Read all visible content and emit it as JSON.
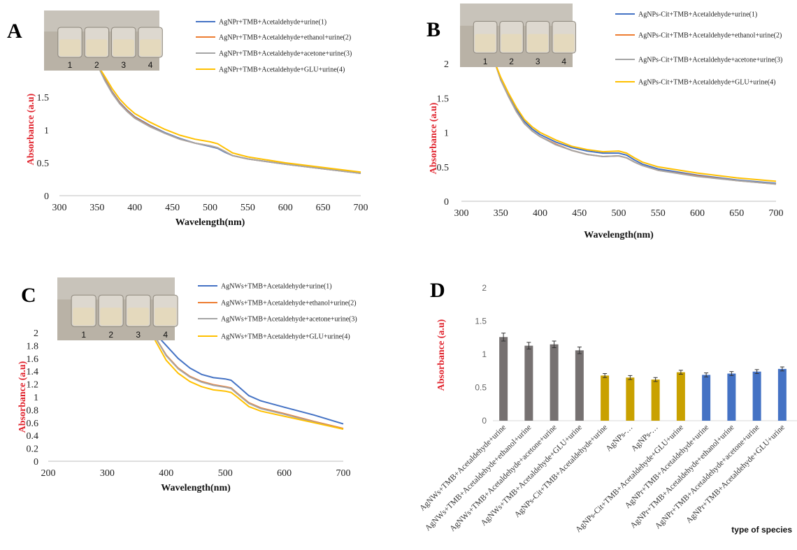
{
  "panels": {
    "A": {
      "label": "A",
      "vials": [
        "1",
        "2",
        "3",
        "4"
      ]
    },
    "B": {
      "label": "B",
      "vials": [
        "1",
        "2",
        "3",
        "4"
      ]
    },
    "C": {
      "label": "C",
      "vials": [
        "1",
        "2",
        "3",
        "4"
      ]
    },
    "D": {
      "label": "D"
    }
  },
  "colors": {
    "blue": "#4472c4",
    "orange": "#ed7d31",
    "gray": "#a5a5a5",
    "yellow": "#ffc000",
    "darkgray": "#767171",
    "gold": "#c9a100",
    "barblue": "#4472c4"
  },
  "chart_data": [
    {
      "id": "A",
      "type": "line",
      "xlabel": "Wavelength(nm)",
      "ylabel": "Absorbance (a.u)",
      "xlim": [
        300,
        700
      ],
      "ylim": [
        0,
        2
      ],
      "xticks": [
        "300",
        "350",
        "400",
        "450",
        "500",
        "550",
        "600",
        "650",
        "700"
      ],
      "yticks": [
        "0",
        "0.5",
        "1",
        "1.5"
      ],
      "x": [
        350,
        360,
        370,
        380,
        390,
        400,
        420,
        440,
        460,
        480,
        500,
        510,
        520,
        530,
        550,
        600,
        650,
        700
      ],
      "series": [
        {
          "name": "AgNPr+TMB+Acetaldehyde+urine(1)",
          "color": "#4472c4",
          "values": [
            2.0,
            1.78,
            1.58,
            1.42,
            1.3,
            1.2,
            1.07,
            0.96,
            0.87,
            0.8,
            0.75,
            0.72,
            0.66,
            0.61,
            0.56,
            0.48,
            0.41,
            0.34
          ]
        },
        {
          "name": "AgNPr+TMB+Acetaldehyde+ethanol+urine(2)",
          "color": "#ed7d31",
          "values": [
            2.0,
            1.77,
            1.57,
            1.41,
            1.29,
            1.19,
            1.06,
            0.95,
            0.86,
            0.8,
            0.76,
            0.73,
            0.67,
            0.61,
            0.56,
            0.48,
            0.41,
            0.34
          ]
        },
        {
          "name": "AgNPr+TMB+Acetaldehyde+acetone+urine(3)",
          "color": "#a5a5a5",
          "values": [
            2.0,
            1.76,
            1.56,
            1.4,
            1.28,
            1.18,
            1.05,
            0.95,
            0.86,
            0.8,
            0.76,
            0.73,
            0.67,
            0.61,
            0.56,
            0.48,
            0.41,
            0.34
          ]
        },
        {
          "name": "AgNPr+TMB+Acetaldehyde+GLU+urine(4)",
          "color": "#ffc000",
          "values": [
            2.0,
            1.82,
            1.63,
            1.47,
            1.35,
            1.25,
            1.12,
            1.01,
            0.92,
            0.86,
            0.82,
            0.79,
            0.72,
            0.65,
            0.59,
            0.5,
            0.43,
            0.36
          ]
        }
      ]
    },
    {
      "id": "B",
      "type": "line",
      "xlabel": "Wavelength(nm)",
      "ylabel": "Absorbance (a.u)",
      "xlim": [
        300,
        700
      ],
      "ylim": [
        0,
        2
      ],
      "xticks": [
        "300",
        "350",
        "400",
        "450",
        "500",
        "550",
        "600",
        "650",
        "700"
      ],
      "yticks": [
        "0",
        "0.5",
        "1",
        "1.5",
        "2"
      ],
      "x": [
        343,
        350,
        360,
        370,
        380,
        390,
        400,
        420,
        440,
        460,
        480,
        500,
        510,
        520,
        530,
        550,
        600,
        650,
        700
      ],
      "series": [
        {
          "name": "AgNPs-Cit+TMB+Acetaldehyde+urine(1)",
          "color": "#4472c4",
          "values": [
            2.0,
            1.78,
            1.55,
            1.33,
            1.16,
            1.05,
            0.97,
            0.86,
            0.78,
            0.73,
            0.7,
            0.7,
            0.67,
            0.6,
            0.54,
            0.47,
            0.38,
            0.31,
            0.26
          ]
        },
        {
          "name": "AgNPs-Cit+TMB+Acetaldehyde+ethanol+urine(2)",
          "color": "#ed7d31",
          "values": [
            2.0,
            1.76,
            1.52,
            1.3,
            1.13,
            1.02,
            0.94,
            0.83,
            0.74,
            0.68,
            0.65,
            0.66,
            0.63,
            0.57,
            0.52,
            0.45,
            0.37,
            0.3,
            0.25
          ]
        },
        {
          "name": "AgNPs-Cit+TMB+Acetaldehyde+acetone+urine(3)",
          "color": "#a5a5a5",
          "values": [
            2.0,
            1.76,
            1.52,
            1.3,
            1.13,
            1.02,
            0.94,
            0.82,
            0.74,
            0.68,
            0.65,
            0.66,
            0.63,
            0.57,
            0.52,
            0.45,
            0.36,
            0.3,
            0.25
          ]
        },
        {
          "name": "AgNPs-Cit+TMB+Acetaldehyde+GLU+urine(4)",
          "color": "#ffc000",
          "values": [
            2.0,
            1.8,
            1.57,
            1.36,
            1.19,
            1.08,
            1.0,
            0.89,
            0.8,
            0.75,
            0.72,
            0.73,
            0.7,
            0.63,
            0.57,
            0.5,
            0.41,
            0.34,
            0.29
          ]
        }
      ]
    },
    {
      "id": "C",
      "type": "line",
      "xlabel": "Wavelength(nm)",
      "ylabel": "Absorbance (a.u)",
      "xlim": [
        200,
        700
      ],
      "ylim": [
        0,
        2
      ],
      "xticks": [
        "200",
        "300",
        "400",
        "500",
        "600",
        "700"
      ],
      "yticks": [
        "0",
        "0.2",
        "0.4",
        "0.6",
        "0.8",
        "1",
        "1.2",
        "1.4",
        "1.6",
        "1.8",
        "2"
      ],
      "x": [
        380,
        400,
        420,
        440,
        460,
        480,
        500,
        510,
        520,
        540,
        560,
        600,
        650,
        700
      ],
      "series": [
        {
          "name": "AgNWs+TMB+Acetaldehyde+urine(1)",
          "color": "#4472c4",
          "values": [
            2.0,
            1.8,
            1.6,
            1.45,
            1.35,
            1.3,
            1.28,
            1.26,
            1.18,
            1.02,
            0.94,
            0.84,
            0.72,
            0.58
          ]
        },
        {
          "name": "AgNWs+TMB+Acetaldehyde+ethanol+urine(2)",
          "color": "#ed7d31",
          "values": [
            1.95,
            1.65,
            1.45,
            1.32,
            1.24,
            1.19,
            1.16,
            1.14,
            1.06,
            0.91,
            0.83,
            0.74,
            0.62,
            0.51
          ]
        },
        {
          "name": "AgNWs+TMB+Acetaldehyde+acetone+urine(3)",
          "color": "#a5a5a5",
          "values": [
            1.95,
            1.64,
            1.44,
            1.31,
            1.23,
            1.18,
            1.15,
            1.13,
            1.05,
            0.9,
            0.82,
            0.73,
            0.61,
            0.5
          ]
        },
        {
          "name": "AgNWs+TMB+Acetaldehyde+GLU+urine(4)",
          "color": "#ffc000",
          "values": [
            1.9,
            1.57,
            1.37,
            1.24,
            1.16,
            1.11,
            1.09,
            1.07,
            1.0,
            0.85,
            0.78,
            0.7,
            0.6,
            0.5
          ]
        }
      ]
    },
    {
      "id": "D",
      "type": "bar",
      "ylabel": "Absorbance (a.u)",
      "xlabel": "type of species",
      "ylim": [
        0,
        2
      ],
      "yticks": [
        "0",
        "0.5",
        "1",
        "1.5",
        "2"
      ],
      "categories": [
        "AgNWs+TMB+Acetaldehyde+urine",
        "AgNWs+TMB+Acetaldehyde+ethanol+urine",
        "AgNWs+TMB+Acetaldehyde+acetone+urine",
        "AgNWs+TMB+Acetaldehyde+GLU+urine",
        "AgNPs-Cit+TMB+Acetaldehyde+urine",
        "AgNPs-…",
        "AgNPs-…",
        "AgNPs-Cit+TMB+Acetaldehyde+GLU+urine",
        "AgNPr+TMB+Acetaldehyde+urine",
        "AgNPr+TMB+Acetaldehyde+ethanol+urine",
        "AgNPr+TMB+Acetaldehyde+acetone+urine",
        "AgNPr+TMB+Acetaldehyde+GLU+urine"
      ],
      "values": [
        1.26,
        1.13,
        1.15,
        1.06,
        0.68,
        0.65,
        0.62,
        0.73,
        0.69,
        0.71,
        0.74,
        0.78
      ],
      "errors": [
        0.06,
        0.05,
        0.05,
        0.05,
        0.03,
        0.03,
        0.03,
        0.03,
        0.03,
        0.03,
        0.03,
        0.03
      ],
      "bar_colors": [
        "#767171",
        "#767171",
        "#767171",
        "#767171",
        "#c9a100",
        "#c9a100",
        "#c9a100",
        "#c9a100",
        "#4472c4",
        "#4472c4",
        "#4472c4",
        "#4472c4"
      ]
    }
  ]
}
